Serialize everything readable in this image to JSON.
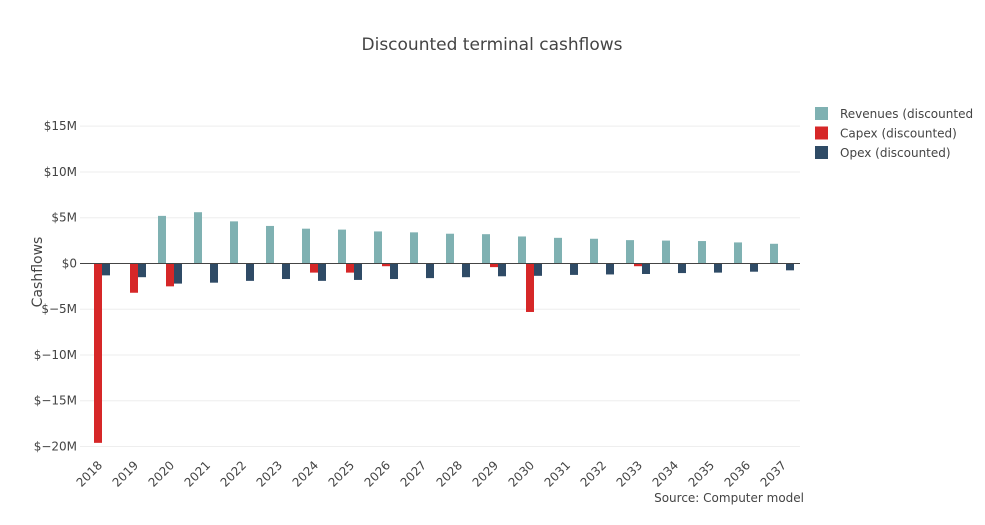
{
  "chart_data": {
    "type": "bar",
    "title": "Discounted terminal cashflows",
    "ylabel": "Cashflows",
    "xlabel": "",
    "source": "Source: Computer model",
    "ylim": [
      -20.6,
      19.5
    ],
    "yticks": [
      15,
      10,
      5,
      0,
      -5,
      -10,
      -15,
      -20
    ],
    "ytick_labels": [
      "$15M",
      "$10M",
      "$5M",
      "$0",
      "$−5M",
      "$−10M",
      "$−15M",
      "$−20M"
    ],
    "grid": true,
    "legend_position": "top-right",
    "categories": [
      "2018",
      "2019",
      "2020",
      "2021",
      "2022",
      "2023",
      "2024",
      "2025",
      "2026",
      "2027",
      "2028",
      "2029",
      "2030",
      "2031",
      "2032",
      "2033",
      "2034",
      "2035",
      "2036",
      "2037"
    ],
    "series": [
      {
        "name": "Revenues (discounted",
        "color": "#7fb1b2",
        "values": [
          0,
          0,
          5.2,
          5.6,
          4.6,
          4.1,
          3.8,
          3.7,
          3.5,
          3.4,
          3.25,
          3.2,
          2.95,
          2.8,
          2.7,
          2.55,
          2.5,
          2.45,
          2.3,
          2.15
        ]
      },
      {
        "name": "Capex (discounted)",
        "color": "#d62728",
        "values": [
          -19.6,
          -3.2,
          -2.5,
          0,
          0,
          0,
          -1.0,
          -1.0,
          -0.3,
          0,
          0,
          -0.4,
          -5.3,
          0,
          0,
          -0.3,
          0,
          0,
          0,
          0
        ]
      },
      {
        "name": "Opex (discounted)",
        "color": "#2f4b66",
        "values": [
          -1.3,
          -1.5,
          -2.2,
          -2.1,
          -1.9,
          -1.7,
          -1.9,
          -1.8,
          -1.7,
          -1.6,
          -1.5,
          -1.4,
          -1.35,
          -1.25,
          -1.2,
          -1.15,
          -1.05,
          -1.0,
          -0.9,
          -0.75
        ]
      }
    ]
  }
}
